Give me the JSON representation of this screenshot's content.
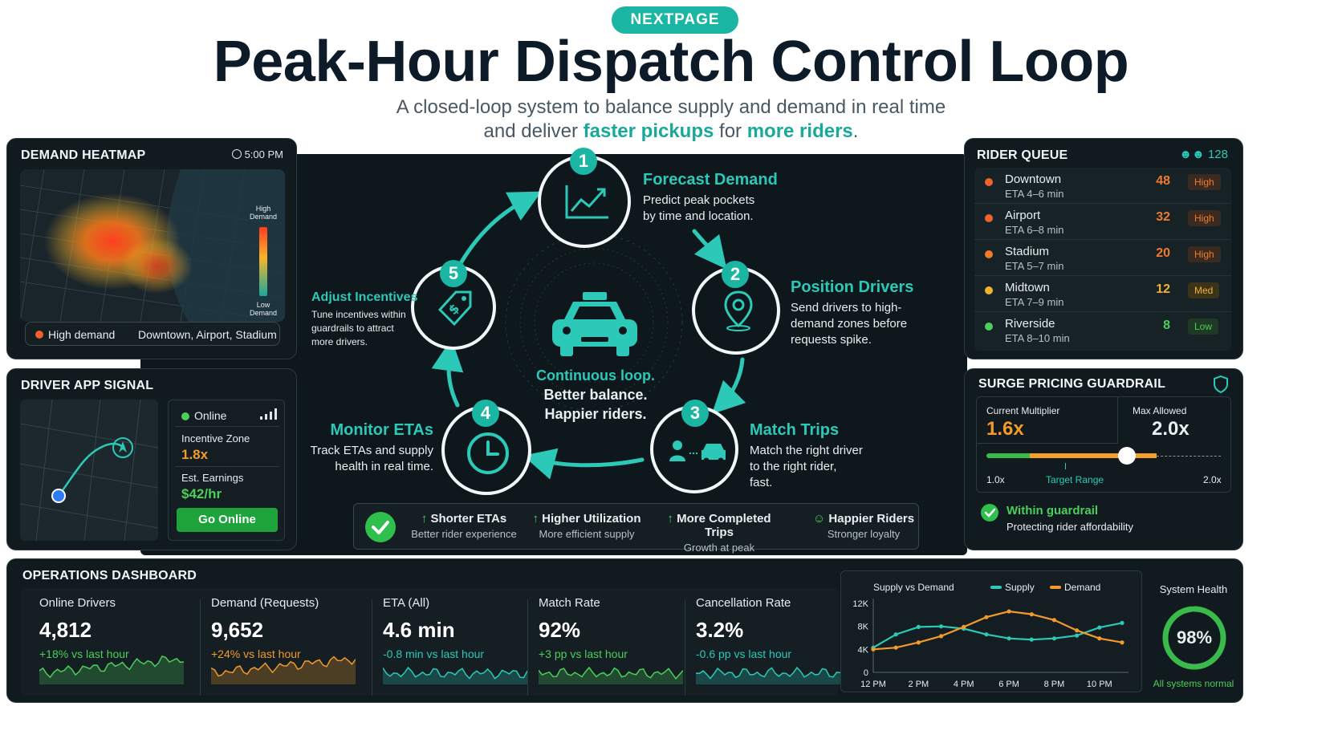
{
  "header": {
    "badge": "NEXTPAGE",
    "title": "Peak-Hour Dispatch Control Loop",
    "subtitle_line1": "A closed-loop system to balance supply and demand in real time",
    "subtitle_line2_pre": "and deliver ",
    "subtitle_line2_em1": "faster pickups",
    "subtitle_line2_mid": " for ",
    "subtitle_line2_em2": "more riders",
    "subtitle_line2_post": "."
  },
  "heatmap": {
    "title": "DEMAND HEATMAP",
    "time": "5:00 PM",
    "scale_high": "High\nDemand",
    "scale_low": "Low\nDemand",
    "legend_label": "High demand",
    "legend_zones": "Downtown, Airport, Stadium"
  },
  "driver_app": {
    "title": "DRIVER APP SIGNAL",
    "status": "Online",
    "zone_label": "Incentive Zone",
    "zone_value": "1.8x",
    "earn_label": "Est. Earnings",
    "earn_value": "$42/hr",
    "button": "Go Online"
  },
  "loop": {
    "center_line1": "Continuous loop.",
    "center_line2": "Better balance.",
    "center_line3": "Happier riders.",
    "steps": [
      {
        "num": "1",
        "title": "Forecast Demand",
        "desc1": "Predict peak pockets",
        "desc2": "by time and location.",
        "desc3": ""
      },
      {
        "num": "2",
        "title": "Position Drivers",
        "desc1": "Send drivers to high-",
        "desc2": "demand zones before",
        "desc3": "requests spike."
      },
      {
        "num": "3",
        "title": "Match Trips",
        "desc1": "Match the right driver",
        "desc2": "to the right rider,",
        "desc3": "fast."
      },
      {
        "num": "4",
        "title": "Monitor ETAs",
        "desc1": "Track ETAs and supply",
        "desc2": "health in real time.",
        "desc3": ""
      },
      {
        "num": "5",
        "title": "Adjust Incentives",
        "desc1": "Tune incentives within",
        "desc2": "guardrails to attract",
        "desc3": "more drivers."
      }
    ],
    "outcomes": [
      {
        "title": "Shorter ETAs",
        "sub": "Better rider experience"
      },
      {
        "title": "Higher Utilization",
        "sub": "More efficient supply"
      },
      {
        "title": "More Completed Trips",
        "sub": "Growth at peak"
      },
      {
        "title": "Happier Riders",
        "sub": "Stronger loyalty"
      }
    ]
  },
  "rider_queue": {
    "title": "RIDER QUEUE",
    "count": "128",
    "rows": [
      {
        "zone": "Downtown",
        "eta": "ETA 4–6 min",
        "count": "48",
        "level": "High",
        "color": "#f0612c"
      },
      {
        "zone": "Airport",
        "eta": "ETA 6–8 min",
        "count": "32",
        "level": "High",
        "color": "#f0612c"
      },
      {
        "zone": "Stadium",
        "eta": "ETA 5–7 min",
        "count": "20",
        "level": "High",
        "color": "#f07b2c"
      },
      {
        "zone": "Midtown",
        "eta": "ETA 7–9 min",
        "count": "12",
        "level": "Med",
        "color": "#f3b22b"
      },
      {
        "zone": "Riverside",
        "eta": "ETA 8–10 min",
        "count": "8",
        "level": "Low",
        "color": "#4bcf5a"
      }
    ]
  },
  "surge": {
    "title": "SURGE PRICING GUARDRAIL",
    "current_label": "Current Multiplier",
    "current_value": "1.6x",
    "max_label": "Max Allowed",
    "max_value": "2.0x",
    "scale_min": "1.0x",
    "scale_max": "2.0x",
    "target_label": "Target Range",
    "current_fraction": 0.6,
    "status_title": "Within guardrail",
    "status_sub": "Protecting rider affordability"
  },
  "ops": {
    "title": "OPERATIONS DASHBOARD",
    "metrics": [
      {
        "label": "Online Drivers",
        "value": "4,812",
        "change": "+18% vs last hour",
        "color": "#4bcf5a"
      },
      {
        "label": "Demand (Requests)",
        "value": "9,652",
        "change": "+24% vs last hour",
        "color": "#f39a2b"
      },
      {
        "label": "ETA (All)",
        "value": "4.6 min",
        "change": "-0.8 min vs last hour",
        "color": "#2cc9b8"
      },
      {
        "label": "Match Rate",
        "value": "92%",
        "change": "+3 pp vs last hour",
        "color": "#4bcf5a"
      },
      {
        "label": "Cancellation Rate",
        "value": "3.2%",
        "change": "-0.6 pp vs last hour",
        "color": "#2cc9b8"
      }
    ],
    "health_label": "System Health",
    "health_value": "98%",
    "health_fraction": 0.98,
    "health_status": "All systems normal"
  },
  "chart_data": {
    "type": "line",
    "title": "Supply vs Demand",
    "x": [
      "12 PM",
      "1 PM",
      "2 PM",
      "3 PM",
      "4 PM",
      "5 PM",
      "6 PM",
      "7 PM",
      "8 PM",
      "9 PM",
      "10 PM",
      "10:30 PM"
    ],
    "x_tick_labels": [
      "12 PM",
      "2 PM",
      "4 PM",
      "6 PM",
      "8 PM",
      "10 PM"
    ],
    "y_tick_labels": [
      "12K",
      "8K",
      "4K",
      "0"
    ],
    "ylim": [
      0,
      12000
    ],
    "series": [
      {
        "name": "Supply",
        "color": "#2cc9b8",
        "values": [
          4300,
          6600,
          7900,
          8000,
          7600,
          6600,
          5900,
          5700,
          5900,
          6400,
          7800,
          8600
        ]
      },
      {
        "name": "Demand",
        "color": "#f39a2b",
        "values": [
          4000,
          4300,
          5200,
          6300,
          7900,
          9600,
          10600,
          10100,
          9100,
          7300,
          5900,
          5200
        ]
      }
    ]
  }
}
